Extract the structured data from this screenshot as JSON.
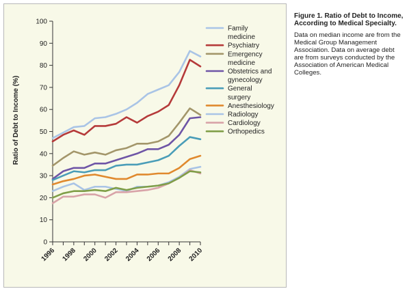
{
  "caption": {
    "title": "Figure 1. Ratio of Debt to Income, According to Medical Specialty.",
    "body": "Data on median income are from the Medical Group Management Association. Data on average debt are from surveys conducted by the Association of American Medical Colleges."
  },
  "chart_data": {
    "type": "line",
    "title": "",
    "xlabel": "",
    "ylabel": "Ratio of Debt to Income (%)",
    "xlim": [
      1996,
      2010
    ],
    "ylim": [
      0,
      100
    ],
    "x_ticks": [
      1996,
      1998,
      2000,
      2002,
      2004,
      2006,
      2008,
      2010
    ],
    "y_ticks": [
      0,
      10,
      20,
      30,
      40,
      50,
      60,
      70,
      80,
      90,
      100
    ],
    "grid": false,
    "legend_position": "top-right",
    "x": [
      1996,
      1997,
      1998,
      1999,
      2000,
      2001,
      2002,
      2003,
      2004,
      2005,
      2006,
      2007,
      2008,
      2009,
      2010
    ],
    "series": [
      {
        "name": "Family medicine",
        "color": "#a9c4e6",
        "values": [
          47,
          49.5,
          52,
          52.5,
          56,
          56.5,
          58,
          60,
          63,
          67,
          69,
          71,
          77,
          86.5,
          84
        ]
      },
      {
        "name": "Psychiatry",
        "color": "#b53a3a",
        "values": [
          45.5,
          48.5,
          50.5,
          48.5,
          52.5,
          52.5,
          53.5,
          56.5,
          54,
          57,
          59,
          62,
          71,
          82.5,
          79.5
        ]
      },
      {
        "name": "Emergency medicine",
        "color": "#a3966a",
        "values": [
          34.5,
          38,
          41,
          39.5,
          40.5,
          39.5,
          41.5,
          42.5,
          44.5,
          44.5,
          45.5,
          48,
          54,
          60.5,
          57.5
        ]
      },
      {
        "name": "Obstetrics and gynecology",
        "color": "#6e55a6",
        "values": [
          28.5,
          32,
          33.5,
          33.5,
          35.5,
          35.5,
          37,
          38.5,
          40,
          42,
          42,
          44,
          48.5,
          56,
          56.5
        ]
      },
      {
        "name": "General surgery",
        "color": "#4a9db8",
        "values": [
          28,
          30,
          32,
          31.5,
          32.5,
          32.5,
          34.5,
          35,
          35,
          36,
          37,
          39,
          43.5,
          47.5,
          46.5
        ]
      },
      {
        "name": "Anesthesiology",
        "color": "#e0892e",
        "values": [
          26,
          27.5,
          28.5,
          30,
          30.5,
          29.5,
          28.5,
          28.5,
          30.5,
          30.5,
          31,
          31,
          33.5,
          37.5,
          39
        ]
      },
      {
        "name": "Radiology",
        "color": "#a9c4e6",
        "values": [
          23,
          25,
          26.5,
          23.5,
          25,
          25,
          24,
          23,
          25,
          25,
          25.5,
          27,
          29.5,
          33,
          34
        ]
      },
      {
        "name": "Cardiology",
        "color": "#d8a3a8",
        "values": [
          17.5,
          20.5,
          20.5,
          21.5,
          21.5,
          20,
          22.5,
          22.5,
          23,
          23.5,
          24.5,
          26.5,
          29,
          32.5,
          31
        ]
      },
      {
        "name": "Orthopedics",
        "color": "#7f9e47",
        "values": [
          20,
          22,
          23,
          23,
          23.5,
          23,
          24.5,
          23.5,
          24.5,
          25,
          25.5,
          26.5,
          29,
          32,
          31.5
        ]
      }
    ]
  }
}
